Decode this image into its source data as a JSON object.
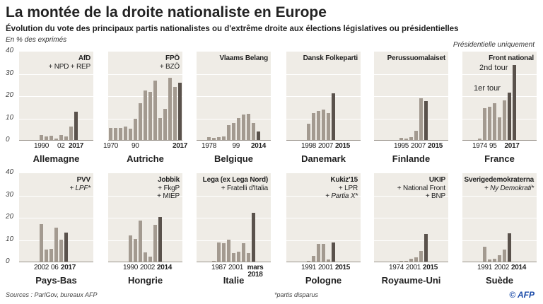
{
  "title": "La montée de la droite nationaliste en Europe",
  "subtitle": "Évolution du vote des principaux partis nationalistes ou d'extrême droite aux élections législatives ou présidentielles",
  "unit": "En % des exprimés",
  "note_france": "Présidentielle uniquement",
  "source": "Sources : ParlGov, bureaux AFP",
  "footnote": "*partis disparus",
  "logo": "© AFP",
  "colors": {
    "panel_bg": "#efece6",
    "bar": "#a39a90",
    "bar_latest": "#5a524c"
  },
  "chart_data": {
    "type": "bar",
    "ylim": [
      0,
      40
    ],
    "yticks": [
      "40",
      "30",
      "20",
      "10",
      "0"
    ],
    "grid": true,
    "panels": [
      {
        "country": "Allemagne",
        "party": [
          {
            "t": "AfD"
          },
          {
            "t": "+ NPD + REP"
          }
        ],
        "values": [
          2.2,
          1.7,
          1.9,
          0.8,
          2.1,
          1.7,
          6.1,
          12.9
        ],
        "ticks": [
          {
            "i": 0,
            "label": "1990"
          },
          {
            "i": 4,
            "label": "02"
          },
          {
            "i": 7,
            "label": "2017",
            "bold": true
          }
        ]
      },
      {
        "country": "Autriche",
        "party": [
          {
            "t": "FPÖ"
          },
          {
            "t": "+ BZÖ"
          }
        ],
        "values": [
          5.4,
          5.4,
          5.4,
          6.0,
          5.0,
          9.7,
          16.5,
          22.5,
          21.9,
          26.9,
          9.9,
          14.0,
          28.3,
          23.9,
          25.9
        ],
        "ticks": [
          {
            "i": 0,
            "label": "1970"
          },
          {
            "i": 5,
            "label": "90"
          },
          {
            "i": 14,
            "label": "2017",
            "bold": true
          }
        ]
      },
      {
        "country": "Belgique",
        "party": [
          {
            "t": "Vlaams Belang"
          }
        ],
        "values": [
          1.4,
          1.1,
          1.4,
          1.7,
          6.6,
          7.7,
          9.8,
          11.4,
          12.0,
          7.6,
          3.7
        ],
        "ticks": [
          {
            "i": 0,
            "label": "1978"
          },
          {
            "i": 5.5,
            "label": "99"
          },
          {
            "i": 10,
            "label": "2014",
            "bold": true
          }
        ]
      },
      {
        "country": "Danemark",
        "party": [
          {
            "t": "Dansk Folkeparti"
          }
        ],
        "values": [
          7.3,
          12.3,
          13.1,
          13.9,
          12.3,
          21.1
        ],
        "ticks": [
          {
            "i": 0,
            "label": "1998"
          },
          {
            "i": 3,
            "label": "2007"
          },
          {
            "i": 5,
            "label": "2015",
            "bold": true
          }
        ]
      },
      {
        "country": "Finlande",
        "party": [
          {
            "t": "Perussuomalaiset"
          }
        ],
        "values": [
          1.0,
          0.8,
          1.4,
          4.1,
          19.0,
          17.6
        ],
        "ticks": [
          {
            "i": 0,
            "label": "1995"
          },
          {
            "i": 2,
            "label": "2007"
          },
          {
            "i": 5,
            "label": "2015",
            "bold": true
          }
        ]
      },
      {
        "country": "France",
        "party": [
          {
            "t": "Front national"
          }
        ],
        "values": [
          0.6,
          14.4,
          15.0,
          16.8,
          10.4,
          17.9,
          21.3,
          33.9
        ],
        "ticks": [
          {
            "i": 0,
            "label": "1974"
          },
          {
            "i": 2.7,
            "label": "95"
          },
          {
            "i": 6.5,
            "label": "2017",
            "bold": true
          }
        ],
        "annotations": [
          "2nd tour",
          "1er tour"
        ]
      },
      {
        "country": "Pays-Bas",
        "party": [
          {
            "t": "PVV"
          },
          {
            "t": "+ LPF*",
            "italic": true
          }
        ],
        "values": [
          17.0,
          5.6,
          5.9,
          15.5,
          10.0,
          13.1
        ],
        "ticks": [
          {
            "i": 0,
            "label": "2002"
          },
          {
            "i": 2,
            "label": "06"
          },
          {
            "i": 5,
            "label": "2017",
            "bold": true
          }
        ]
      },
      {
        "country": "Hongrie",
        "party": [
          {
            "t": "Jobbik"
          },
          {
            "t": "+ FkgP"
          },
          {
            "t": "+ MIEP"
          }
        ],
        "values": [
          11.8,
          10.3,
          18.6,
          4.3,
          2.1,
          16.7,
          20.3
        ],
        "ticks": [
          {
            "i": 0,
            "label": "1990"
          },
          {
            "i": 3,
            "label": "2002"
          },
          {
            "i": 6,
            "label": "2014",
            "bold": true
          }
        ]
      },
      {
        "country": "Italie",
        "party": [
          {
            "t": "Lega (ex Lega Nord)"
          },
          {
            "t": "+ Fratelli d'Italia"
          }
        ],
        "values": [
          0.3,
          8.7,
          8.3,
          10.0,
          3.8,
          4.5,
          8.3,
          4.0,
          22.1
        ],
        "ticks": [
          {
            "i": 1,
            "label": "1987"
          },
          {
            "i": 4,
            "label": "2001"
          },
          {
            "i": 8,
            "label": "mars 2018",
            "bold": true
          }
        ]
      },
      {
        "country": "Pologne",
        "party": [
          {
            "t": "Kukiz'15"
          },
          {
            "t": "+ LPR"
          },
          {
            "t": "+ Partia X*",
            "italic": true
          }
        ],
        "values": [
          0.3,
          2.6,
          7.9,
          7.9,
          1.1,
          8.8
        ],
        "ticks": [
          {
            "i": 0,
            "label": "1991"
          },
          {
            "i": 2,
            "label": "2001"
          },
          {
            "i": 5,
            "label": "2015",
            "bold": true
          }
        ]
      },
      {
        "country": "Royaume-Uni",
        "party": [
          {
            "t": "UKIP"
          },
          {
            "t": "+ National Front"
          },
          {
            "t": "+ BNP"
          }
        ],
        "values": [
          0.1,
          0.2,
          0.3,
          1.3,
          2.0,
          4.9,
          12.6
        ],
        "ticks": [
          {
            "i": 0,
            "label": "1974"
          },
          {
            "i": 2.2,
            "label": "2001"
          },
          {
            "i": 6,
            "label": "2015",
            "bold": true
          }
        ]
      },
      {
        "country": "Suède",
        "party": [
          {
            "t": "Sverigedemokraterna"
          },
          {
            "t": "+ Ny Demokrati*",
            "italic": true
          }
        ],
        "values": [
          6.6,
          1.1,
          1.2,
          2.8,
          5.6,
          12.8
        ],
        "ticks": [
          {
            "i": 0,
            "label": "1991"
          },
          {
            "i": 2.5,
            "label": "2002"
          },
          {
            "i": 5,
            "label": "2014",
            "bold": true
          }
        ]
      }
    ]
  }
}
